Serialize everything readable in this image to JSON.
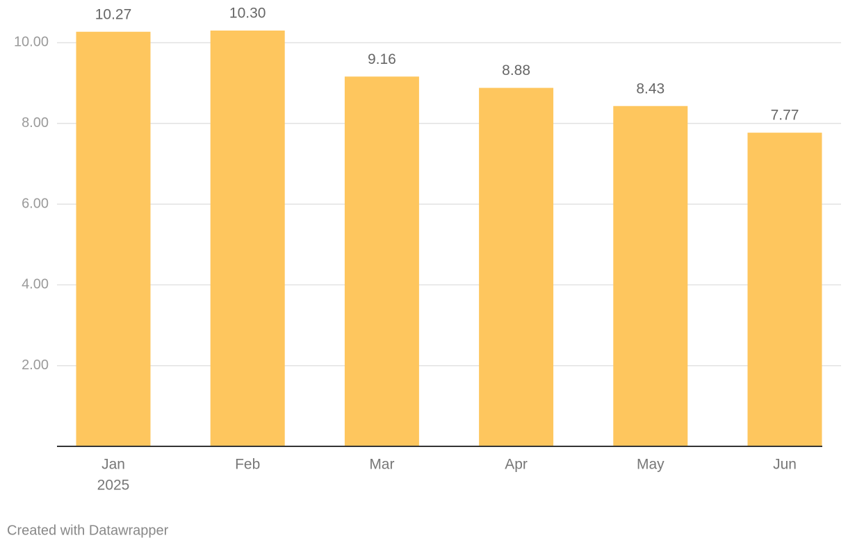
{
  "chart_data": {
    "type": "bar",
    "categories": [
      "Jan",
      "Feb",
      "Mar",
      "Apr",
      "May",
      "Jun"
    ],
    "year_label": "2025",
    "values": [
      10.27,
      10.3,
      9.16,
      8.88,
      8.43,
      7.77
    ],
    "value_labels": [
      "10.27",
      "10.30",
      "9.16",
      "8.88",
      "8.43",
      "7.77"
    ],
    "color": "#fec65e",
    "ylim": [
      0,
      10.3
    ],
    "yticks": [
      {
        "value": 2,
        "label": "2.00"
      },
      {
        "value": 4,
        "label": "4.00"
      },
      {
        "value": 6,
        "label": "6.00"
      },
      {
        "value": 8,
        "label": "8.00"
      },
      {
        "value": 10,
        "label": "10.00"
      }
    ],
    "grid": true
  },
  "footer": "Created with Datawrapper"
}
